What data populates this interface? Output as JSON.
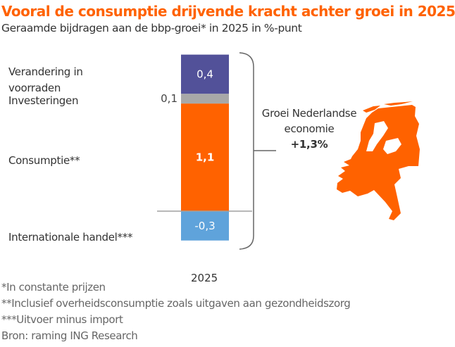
{
  "title": "Vooral de consumptie drijvende kracht achter groei in 2025",
  "subtitle": "Geraamde bijdragen aan de bbp-groei* in 2025 in %-punt",
  "chart_data": {
    "type": "bar",
    "stacked": true,
    "title": "Vooral de consumptie drijvende kracht achter groei in 2025",
    "subtitle": "Geraamde bijdragen aan de bbp-groei* in 2025 in %-punt",
    "categories": [
      "2025"
    ],
    "xlabel": "",
    "ylabel": "%-punt",
    "ylim": [
      -0.3,
      1.6
    ],
    "series": [
      {
        "name": "Internationale handel***",
        "values": [
          -0.3
        ],
        "label": "-0,3",
        "color": "#5fa3db"
      },
      {
        "name": "Consumptie**",
        "values": [
          1.1
        ],
        "label": "1,1",
        "color": "#ff6200"
      },
      {
        "name": "Investeringen",
        "values": [
          0.1
        ],
        "label": "0,1",
        "color": "#a8a8a8"
      },
      {
        "name": "Verandering in voorraden",
        "values": [
          0.4
        ],
        "label": "0,4",
        "color": "#525199"
      }
    ],
    "total": {
      "label_line1": "Groei Nederlandse",
      "label_line2": "economie",
      "value": 1.3,
      "value_label": "+1,3%"
    }
  },
  "category_labels": {
    "voorraden": "Verandering in voorraden",
    "voorraden_line1": "Verandering in",
    "voorraden_line2": "voorraden",
    "investeringen": "Investeringen",
    "consumptie": "Consumptie**",
    "handel": "Internationale handel***"
  },
  "footnotes": [
    "*In constante prijzen",
    "**Inclusief overheidsconsumptie zoals uitgaven aan gezondheidszorg",
    "***Uitvoer minus import",
    "Bron: raming ING Research"
  ],
  "map": {
    "icon": "netherlands-map-icon",
    "color": "#ff6200"
  }
}
